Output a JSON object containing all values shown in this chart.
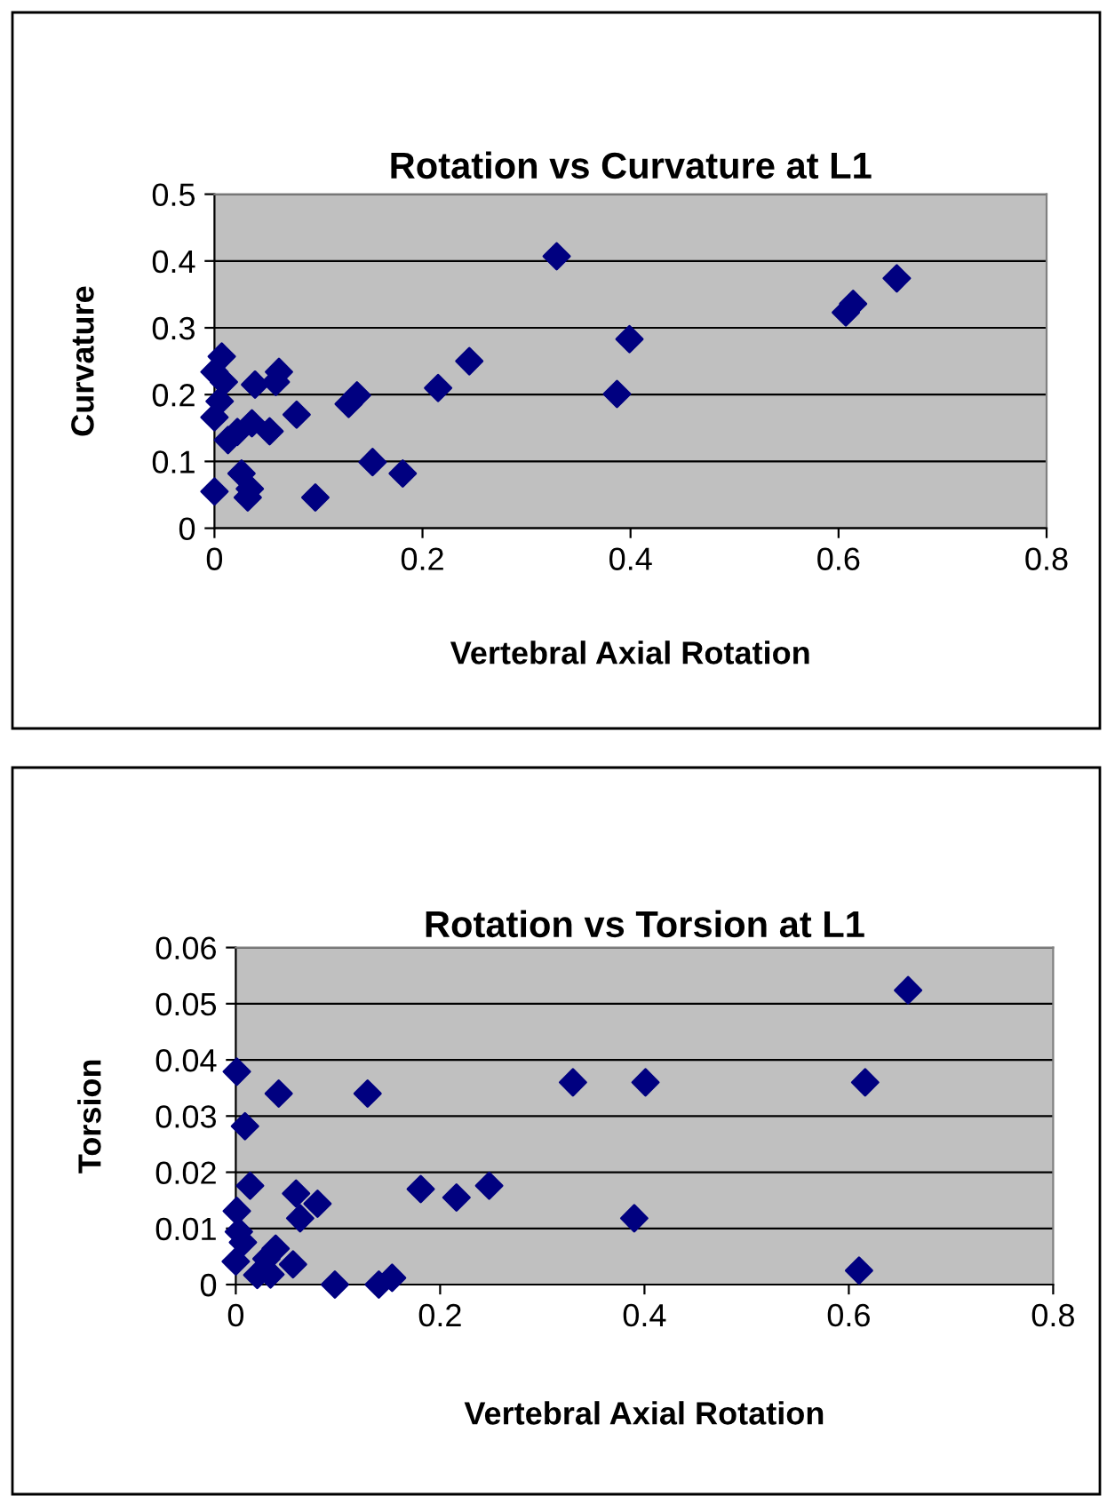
{
  "chart_data": [
    {
      "type": "scatter",
      "title": "Rotation vs Curvature at L1",
      "xlabel": "Vertebral Axial Rotation",
      "ylabel": "Curvature",
      "xlim": [
        0,
        0.8
      ],
      "ylim": [
        0,
        0.5
      ],
      "xticks": [
        0,
        0.2,
        0.4,
        0.6,
        0.8
      ],
      "yticks": [
        0,
        0.1,
        0.2,
        0.3,
        0.4,
        0.5
      ],
      "grid": "y",
      "marker": "diamond",
      "series": [
        {
          "color": "#000080",
          "x": [
            0.329,
            0.656,
            0.614,
            0.607,
            0.399,
            0.387,
            0.245,
            0.215,
            0.137,
            0.129,
            0.152,
            0.181,
            0.097,
            0.079,
            0.062,
            0.059,
            0.053,
            0.039,
            0.036,
            0.032,
            0.034,
            0.026,
            0.022,
            0.013,
            0.007,
            0.009,
            0,
            0.005,
            0,
            0
          ],
          "values": [
            0.407,
            0.374,
            0.336,
            0.323,
            0.283,
            0.201,
            0.25,
            0.21,
            0.199,
            0.186,
            0.099,
            0.082,
            0.046,
            0.17,
            0.234,
            0.219,
            0.145,
            0.215,
            0.157,
            0.046,
            0.059,
            0.082,
            0.144,
            0.132,
            0.257,
            0.219,
            0.234,
            0.19,
            0.166,
            0.055
          ]
        }
      ]
    },
    {
      "type": "scatter",
      "title": "Rotation vs Torsion at L1",
      "xlabel": "Vertebral Axial Rotation",
      "ylabel": "Torsion",
      "xlim": [
        0,
        0.8
      ],
      "ylim": [
        0,
        0.06
      ],
      "xticks": [
        0,
        0.2,
        0.4,
        0.6,
        0.8
      ],
      "yticks": [
        0,
        0.01,
        0.02,
        0.03,
        0.04,
        0.05,
        0.06
      ],
      "grid": "y",
      "marker": "diamond",
      "series": [
        {
          "color": "#000080",
          "x": [
            0.658,
            0.616,
            0.61,
            0.33,
            0.401,
            0.39,
            0.248,
            0.216,
            0.181,
            0.129,
            0.14,
            0.153,
            0.097,
            0.08,
            0.063,
            0.059,
            0.056,
            0.042,
            0.039,
            0.034,
            0.03,
            0.021,
            0.014,
            0.009,
            0.001,
            0.001,
            0.003,
            0.007,
            0
          ],
          "values": [
            0.0524,
            0.036,
            0.0025,
            0.036,
            0.036,
            0.0118,
            0.0176,
            0.0155,
            0.017,
            0.034,
            0,
            0.0012,
            0,
            0.0144,
            0.0118,
            0.0162,
            0.0036,
            0.034,
            0.0064,
            0.0018,
            0.0046,
            0.0017,
            0.0176,
            0.0282,
            0.0379,
            0.0131,
            0.0094,
            0.0075,
            0.0041
          ]
        }
      ]
    }
  ]
}
